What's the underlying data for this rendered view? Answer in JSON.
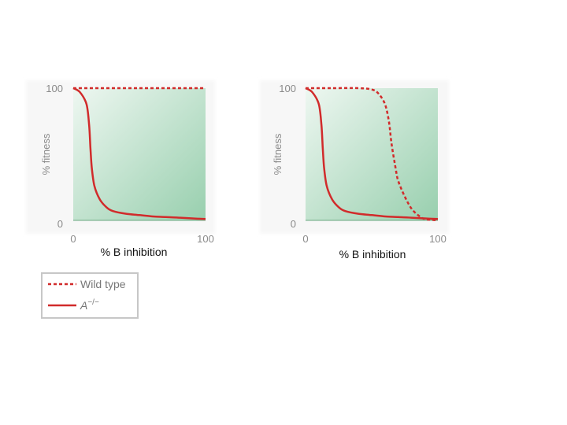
{
  "chart_data": [
    {
      "type": "line",
      "xlabel": "% B inhibition",
      "ylabel": "% fitness",
      "xlim": [
        0,
        100
      ],
      "ylim": [
        0,
        100
      ],
      "xticks": [
        "0",
        "100"
      ],
      "yticks": [
        "0",
        "100"
      ],
      "series": [
        {
          "name": "Wild type",
          "style": "dashed",
          "x": [
            0,
            20,
            40,
            60,
            80,
            100
          ],
          "y": [
            100,
            100,
            100,
            100,
            100,
            100
          ]
        },
        {
          "name": "A−/−",
          "style": "solid",
          "x": [
            0,
            5,
            10,
            12,
            13,
            14,
            16,
            20,
            25,
            30,
            40,
            50,
            60,
            70,
            80,
            90,
            100
          ],
          "y": [
            100,
            97,
            88,
            72,
            55,
            40,
            26,
            16,
            10,
            7,
            5,
            4,
            3,
            2.5,
            2,
            1.5,
            1
          ]
        }
      ]
    },
    {
      "type": "line",
      "xlabel": "% B inhibition",
      "ylabel": "% fitness",
      "xlim": [
        0,
        100
      ],
      "ylim": [
        0,
        100
      ],
      "xticks": [
        "0",
        "100"
      ],
      "yticks": [
        "0",
        "100"
      ],
      "series": [
        {
          "name": "Wild type",
          "style": "dashed",
          "x": [
            0,
            20,
            40,
            50,
            55,
            60,
            63,
            65,
            68,
            70,
            75,
            80,
            85,
            90,
            100
          ],
          "y": [
            100,
            100,
            100,
            99,
            96,
            88,
            75,
            58,
            40,
            30,
            18,
            9,
            4,
            1,
            0
          ]
        },
        {
          "name": "A−/−",
          "style": "solid",
          "x": [
            0,
            5,
            10,
            12,
            13,
            14,
            16,
            20,
            25,
            30,
            40,
            50,
            60,
            70,
            80,
            90,
            100
          ],
          "y": [
            100,
            97,
            88,
            72,
            55,
            40,
            26,
            16,
            10,
            7,
            5,
            4,
            3,
            2.5,
            2,
            1.5,
            1
          ]
        }
      ]
    }
  ],
  "legend": {
    "entries": [
      {
        "label": "Wild type",
        "style": "dashed"
      },
      {
        "label": "A",
        "superscript": "−/−",
        "style": "solid"
      }
    ]
  },
  "colors": {
    "curve": "#d12b2b",
    "plot_bg_light": "#eef7f1",
    "plot_bg_dark": "#98cfae",
    "tick_text": "#8a8a8a",
    "label_text": "#111111"
  }
}
